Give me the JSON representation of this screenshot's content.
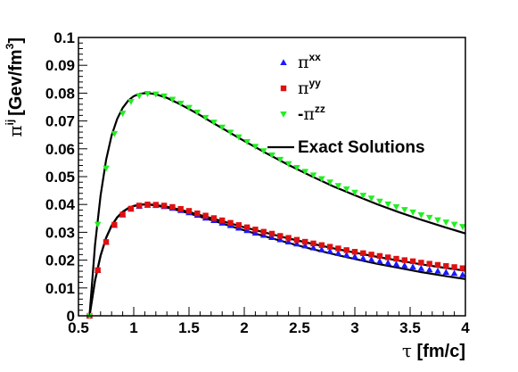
{
  "chart_data": {
    "type": "scatter",
    "xlabel_symbol": "τ",
    "xlabel_unit": "[fm/c]",
    "ylabel_symbol": "π",
    "ylabel_sup": "ij",
    "ylabel_unit": "[Gev/fm",
    "ylabel_unit_sup": "3",
    "ylabel_unit_close": "]",
    "xlim": [
      0.5,
      4
    ],
    "ylim": [
      0,
      0.1
    ],
    "xticks": [
      0.5,
      1,
      1.5,
      2,
      2.5,
      3,
      3.5,
      4
    ],
    "xtick_labels": [
      "0.5",
      "1",
      "1.5",
      "2",
      "2.5",
      "3",
      "3.5",
      "4"
    ],
    "yticks": [
      0,
      0.01,
      0.02,
      0.03,
      0.04,
      0.05,
      0.06,
      0.07,
      0.08,
      0.09,
      0.1
    ],
    "ytick_labels": [
      "0",
      "0.01",
      "0.02",
      "0.03",
      "0.04",
      "0.05",
      "0.06",
      "0.07",
      "0.08",
      "0.09",
      "0.1"
    ],
    "grid": false,
    "legend_position": "top-right",
    "series": [
      {
        "name_prefix": "",
        "name_symbol": "π",
        "name_sup": "xx",
        "marker": "triangle-up",
        "color": "#1a1aff",
        "x": [
          0.6,
          0.675,
          0.75,
          0.825,
          0.9,
          0.975,
          1.05,
          1.125,
          1.2,
          1.275,
          1.35,
          1.425,
          1.5,
          1.575,
          1.65,
          1.725,
          1.8,
          1.875,
          1.95,
          2.025,
          2.1,
          2.175,
          2.25,
          2.325,
          2.4,
          2.475,
          2.55,
          2.625,
          2.7,
          2.775,
          2.85,
          2.925,
          3.0,
          3.075,
          3.15,
          3.225,
          3.3,
          3.375,
          3.45,
          3.525,
          3.6,
          3.675,
          3.75,
          3.825,
          3.9,
          3.975
        ],
        "y": [
          0.0,
          0.0164,
          0.0265,
          0.0326,
          0.0363,
          0.0384,
          0.0394,
          0.0398,
          0.0397,
          0.0393,
          0.0387,
          0.0379,
          0.0371,
          0.0362,
          0.0352,
          0.0343,
          0.0334,
          0.0325,
          0.0316,
          0.0307,
          0.0298,
          0.029,
          0.0282,
          0.0274,
          0.0266,
          0.0259,
          0.0252,
          0.0245,
          0.0238,
          0.0232,
          0.0225,
          0.0219,
          0.0213,
          0.0207,
          0.0202,
          0.0196,
          0.0191,
          0.0186,
          0.0181,
          0.0176,
          0.0171,
          0.0166,
          0.0161,
          0.0157,
          0.0153,
          0.0148
        ]
      },
      {
        "name_prefix": "",
        "name_symbol": "π",
        "name_sup": "yy",
        "marker": "square",
        "color": "#e01010",
        "x": [
          0.6,
          0.675,
          0.75,
          0.825,
          0.9,
          0.975,
          1.05,
          1.125,
          1.2,
          1.275,
          1.35,
          1.425,
          1.5,
          1.575,
          1.65,
          1.725,
          1.8,
          1.875,
          1.95,
          2.025,
          2.1,
          2.175,
          2.25,
          2.325,
          2.4,
          2.475,
          2.55,
          2.625,
          2.7,
          2.775,
          2.85,
          2.925,
          3.0,
          3.075,
          3.15,
          3.225,
          3.3,
          3.375,
          3.45,
          3.525,
          3.6,
          3.675,
          3.75,
          3.825,
          3.9,
          3.975
        ],
        "y": [
          0.0,
          0.0164,
          0.0265,
          0.0327,
          0.0364,
          0.0385,
          0.0396,
          0.04,
          0.0399,
          0.0396,
          0.0391,
          0.0384,
          0.0377,
          0.0368,
          0.036,
          0.0351,
          0.0343,
          0.0334,
          0.0326,
          0.0318,
          0.031,
          0.0302,
          0.0295,
          0.0287,
          0.028,
          0.0273,
          0.0266,
          0.026,
          0.0254,
          0.0248,
          0.0242,
          0.0236,
          0.023,
          0.0225,
          0.022,
          0.0215,
          0.021,
          0.0205,
          0.02,
          0.0196,
          0.0191,
          0.0187,
          0.0183,
          0.0179,
          0.0175,
          0.0171
        ]
      },
      {
        "name_prefix": "-",
        "name_symbol": "π",
        "name_sup": "zz",
        "marker": "triangle-down",
        "color": "#22ee22",
        "x": [
          0.6,
          0.675,
          0.75,
          0.825,
          0.9,
          0.975,
          1.05,
          1.125,
          1.2,
          1.275,
          1.35,
          1.425,
          1.5,
          1.575,
          1.65,
          1.725,
          1.8,
          1.875,
          1.95,
          2.025,
          2.1,
          2.175,
          2.25,
          2.325,
          2.4,
          2.475,
          2.55,
          2.625,
          2.7,
          2.775,
          2.85,
          2.925,
          3.0,
          3.075,
          3.15,
          3.225,
          3.3,
          3.375,
          3.45,
          3.525,
          3.6,
          3.675,
          3.75,
          3.825,
          3.9,
          3.975
        ],
        "y": [
          0.0,
          0.0328,
          0.053,
          0.0654,
          0.0727,
          0.0769,
          0.079,
          0.0798,
          0.0796,
          0.0789,
          0.0777,
          0.0763,
          0.0748,
          0.0731,
          0.0712,
          0.0695,
          0.0677,
          0.0659,
          0.0642,
          0.0625,
          0.0608,
          0.0592,
          0.0577,
          0.0561,
          0.0546,
          0.0532,
          0.0518,
          0.0505,
          0.0492,
          0.048,
          0.0467,
          0.0455,
          0.0443,
          0.0432,
          0.0422,
          0.0411,
          0.0401,
          0.0391,
          0.0381,
          0.0372,
          0.0362,
          0.0353,
          0.0344,
          0.0336,
          0.0328,
          0.032
        ]
      }
    ],
    "exact_solutions": {
      "name": "Exact Solutions",
      "color": "#000000",
      "curves": [
        {
          "x": [
            0.6,
            0.65,
            0.7,
            0.75,
            0.8,
            0.85,
            0.9,
            0.95,
            1.0,
            1.05,
            1.1,
            1.15,
            1.2,
            1.3,
            1.4,
            1.5,
            1.6,
            1.7,
            1.8,
            1.9,
            2.0,
            2.2,
            2.4,
            2.6,
            2.8,
            3.0,
            3.2,
            3.4,
            3.6,
            3.8,
            4.0
          ],
          "y": [
            0.0,
            0.0255,
            0.0432,
            0.056,
            0.0648,
            0.0707,
            0.0747,
            0.0773,
            0.0789,
            0.0797,
            0.08,
            0.0799,
            0.0796,
            0.0783,
            0.0764,
            0.0743,
            0.0721,
            0.0697,
            0.0674,
            0.0651,
            0.0628,
            0.0584,
            0.0542,
            0.0503,
            0.0466,
            0.0433,
            0.0401,
            0.0372,
            0.0345,
            0.032,
            0.0296
          ]
        },
        {
          "x": [
            0.6,
            0.65,
            0.7,
            0.75,
            0.8,
            0.85,
            0.9,
            0.95,
            1.0,
            1.05,
            1.1,
            1.15,
            1.2,
            1.3,
            1.4,
            1.5,
            1.6,
            1.7,
            1.8,
            1.9,
            2.0,
            2.2,
            2.4,
            2.6,
            2.8,
            3.0,
            3.2,
            3.4,
            3.6,
            3.8,
            4.0
          ],
          "y": [
            0.0,
            0.0127,
            0.0216,
            0.028,
            0.0324,
            0.0354,
            0.0374,
            0.0387,
            0.0395,
            0.0399,
            0.04,
            0.04,
            0.0398,
            0.0392,
            0.0383,
            0.0373,
            0.0362,
            0.0351,
            0.034,
            0.0329,
            0.0318,
            0.0298,
            0.0278,
            0.026,
            0.0243,
            0.0227,
            0.0212,
            0.0198,
            0.0185,
            0.0173,
            0.0162
          ]
        },
        {
          "x": [
            0.6,
            0.65,
            0.7,
            0.75,
            0.8,
            0.85,
            0.9,
            0.95,
            1.0,
            1.05,
            1.1,
            1.15,
            1.2,
            1.3,
            1.4,
            1.5,
            1.6,
            1.7,
            1.8,
            1.9,
            2.0,
            2.2,
            2.4,
            2.6,
            2.8,
            3.0,
            3.2,
            3.4,
            3.6,
            3.8,
            4.0
          ],
          "y": [
            0.0,
            0.0127,
            0.0216,
            0.028,
            0.0324,
            0.0353,
            0.0373,
            0.0386,
            0.0394,
            0.0398,
            0.04,
            0.0399,
            0.0396,
            0.0389,
            0.0379,
            0.0368,
            0.0356,
            0.0344,
            0.0332,
            0.0319,
            0.0307,
            0.0284,
            0.0262,
            0.0241,
            0.0222,
            0.0204,
            0.0187,
            0.0172,
            0.0157,
            0.0144,
            0.0132
          ]
        }
      ]
    }
  }
}
